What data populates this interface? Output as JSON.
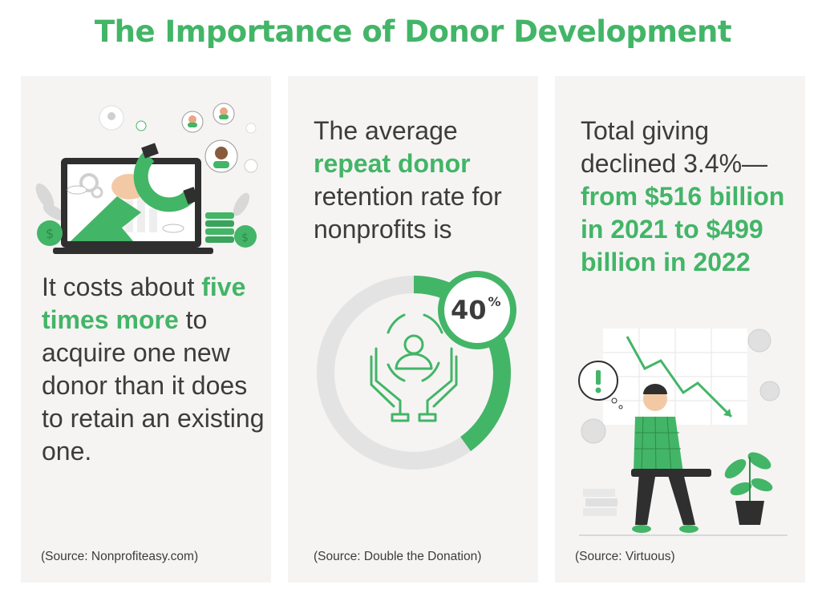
{
  "title": "The Importance of Donor Development",
  "card1": {
    "text_before": "It costs about",
    "highlight": "five times more",
    "text_after": "to acquire one new donor than it does to retain an existing one.",
    "source": "(Source: Nonprofiteasy.com)",
    "illustration": "laptop-magnet-attracting-donors-icon"
  },
  "card2": {
    "text_before": "The average",
    "highlight": "repeat donor",
    "text_after": "retention rate for nonprofits is",
    "percent_value": "40",
    "percent_symbol": "%",
    "retention_fraction": 0.4,
    "source": "(Source: Double the Donation)",
    "icon": "hands-holding-person-icon"
  },
  "card3": {
    "text_before": "Total giving declined 3.4%—",
    "highlight": "from $516 billion in 2021 to $499 billion in 2022",
    "source": "(Source: Virtuous)",
    "illustration": "worried-man-declining-chart-icon"
  },
  "colors": {
    "accent": "#43b567",
    "card_background": "#f5f4f3",
    "text": "#3c3c3c",
    "ring_track": "#e3e3e3"
  }
}
